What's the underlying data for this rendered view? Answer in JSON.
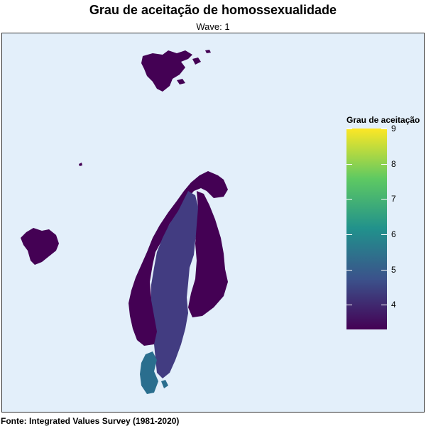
{
  "title": "Grau de aceitação de homossexualidade",
  "subtitle": "Wave: 1",
  "caption": "Fonte: Integrated Values Survey (1981-2020)",
  "legend": {
    "title": "Grau de aceitação",
    "min": 3.3,
    "max": 9,
    "ticks": [
      "9",
      "8",
      "7",
      "6",
      "5",
      "4"
    ],
    "tick_values": [
      9,
      8,
      7,
      6,
      5,
      4
    ],
    "colors": [
      "#440154",
      "#3b528b",
      "#21918c",
      "#5ec962",
      "#fde725"
    ]
  },
  "map": {
    "background_color": "#e3effa",
    "regions": [
      {
        "name": "Svalbard",
        "color": "#440154"
      },
      {
        "name": "Iceland",
        "color": "#440154"
      },
      {
        "name": "Norway",
        "color": "#440154"
      },
      {
        "name": "Sweden",
        "color": "#423c81"
      },
      {
        "name": "Finland",
        "color": "#440154"
      },
      {
        "name": "Denmark",
        "color": "#2a6e8e"
      }
    ]
  }
}
